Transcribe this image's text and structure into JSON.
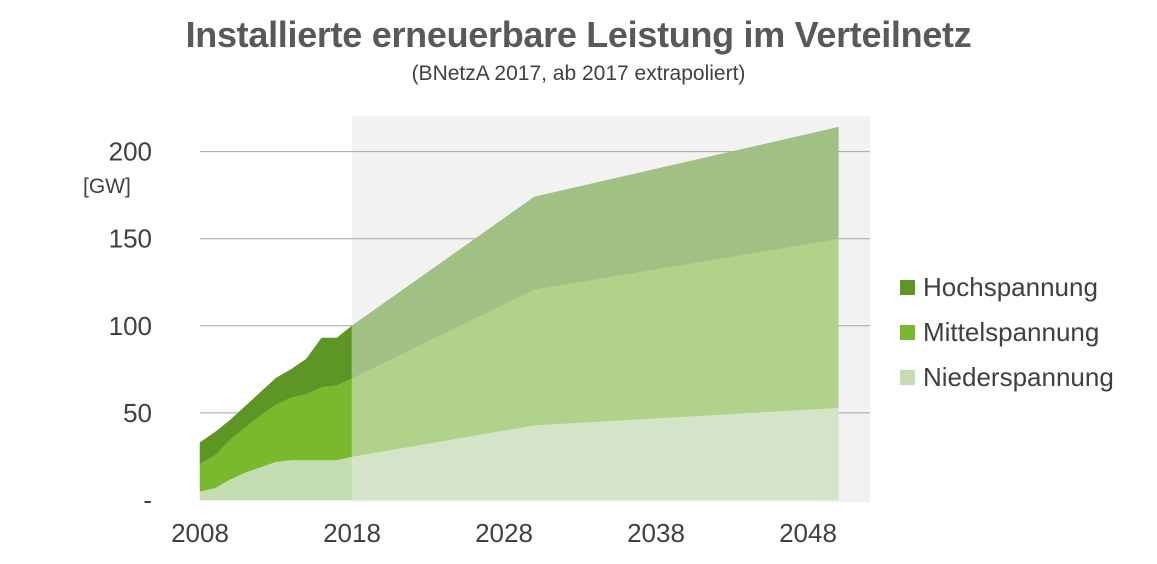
{
  "title": "Installierte erneuerbare Leistung im Verteilnetz",
  "subtitle": "(BNetzA 2017, ab 2017 extrapoliert)",
  "chart_data": {
    "type": "area",
    "stacked": true,
    "ylabel": "[GW]",
    "ylim": [
      0,
      200
    ],
    "yticks": [
      {
        "value": 0,
        "label": "-"
      },
      {
        "value": 50,
        "label": "50"
      },
      {
        "value": 100,
        "label": "100"
      },
      {
        "value": 150,
        "label": "150"
      },
      {
        "value": 200,
        "label": "200"
      }
    ],
    "xlim": [
      2008,
      2051
    ],
    "xticks": [
      2008,
      2018,
      2028,
      2038,
      2048
    ],
    "extrapolated_from": 2018,
    "grid": true,
    "legend_position": "right",
    "x": [
      2008,
      2009,
      2010,
      2011,
      2012,
      2013,
      2014,
      2015,
      2016,
      2017,
      2018,
      2030,
      2050
    ],
    "series": [
      {
        "name": "Niederspannung",
        "color": "#c4ddb1",
        "values": [
          5,
          7,
          12,
          16,
          19,
          22,
          23,
          23,
          23,
          23,
          25,
          43,
          53
        ]
      },
      {
        "name": "Mittelspannung",
        "color": "#7ab82e",
        "values": [
          16,
          19,
          23,
          26,
          30,
          33,
          36,
          38,
          42,
          43,
          45,
          78,
          97
        ]
      },
      {
        "name": "Hochspannung",
        "color": "#5d9624",
        "values": [
          12,
          13,
          11,
          12,
          13,
          15,
          16,
          20,
          28,
          27,
          30,
          53,
          64
        ]
      }
    ],
    "extrapolated_colors": {
      "Niederspannung": "#d4e4c8",
      "Mittelspannung": "#b0d28a",
      "Hochspannung": "#a1c083"
    },
    "shade_color": "#f2f2f2",
    "gridline_color": "#a6a6a6"
  }
}
